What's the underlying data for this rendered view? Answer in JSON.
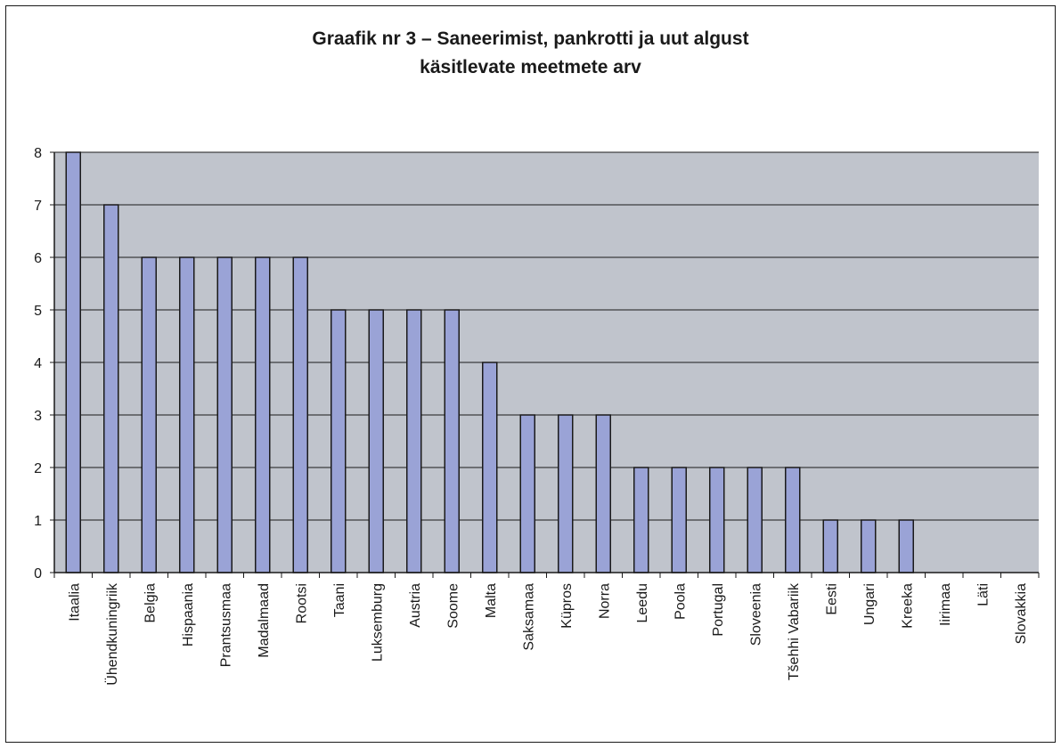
{
  "chart_data": {
    "type": "bar",
    "title": [
      "Graafik nr 3 – Saneerimist, pankrotti ja uut algust",
      "käsitlevate meetmete arv"
    ],
    "categories": [
      "Itaalia",
      "Ühendkuningriik",
      "Belgia",
      "Hispaania",
      "Prantsusmaa",
      "Madalmaad",
      "Rootsi",
      "Taani",
      "Luksemburg",
      "Austria",
      "Soome",
      "Malta",
      "Saksamaa",
      "Küpros",
      "Norra",
      "Leedu",
      "Poola",
      "Portugal",
      "Sloveenia",
      "Tšehhi Vabariik",
      "Eesti",
      "Ungari",
      "Kreeka",
      "Iirimaa",
      "Läti",
      "Slovakkia"
    ],
    "values": [
      8,
      7,
      6,
      6,
      6,
      6,
      6,
      5,
      5,
      5,
      5,
      4,
      3,
      3,
      3,
      2,
      2,
      2,
      2,
      2,
      1,
      1,
      1,
      0,
      0,
      0
    ],
    "ylim": [
      0,
      8
    ],
    "yticks": [
      "0",
      "1",
      "2",
      "3",
      "4",
      "5",
      "6",
      "7",
      "8"
    ],
    "grid": true,
    "legend": "none",
    "colors": {
      "plot_background": "#c0c4cc",
      "bar_fill": "#9aa3d6",
      "bar_stroke": "#1a1a1a",
      "gridline": "#1a1a1a"
    }
  }
}
